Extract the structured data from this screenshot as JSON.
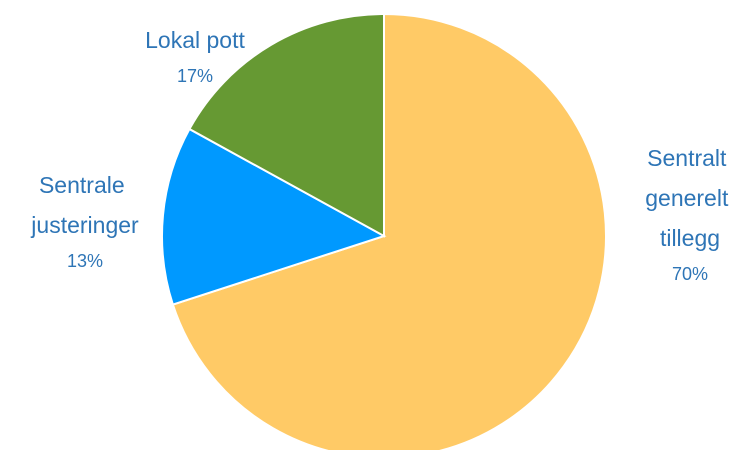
{
  "chart_data": {
    "type": "pie",
    "categories": [
      "Sentralt generelt tillegg",
      "Sentrale justeringer",
      "Lokal pott"
    ],
    "values": [
      70,
      13,
      17
    ],
    "value_labels": [
      "70%",
      "13%",
      "17%"
    ],
    "colors": [
      "#FFCA66",
      "#0099FF",
      "#669933"
    ]
  }
}
